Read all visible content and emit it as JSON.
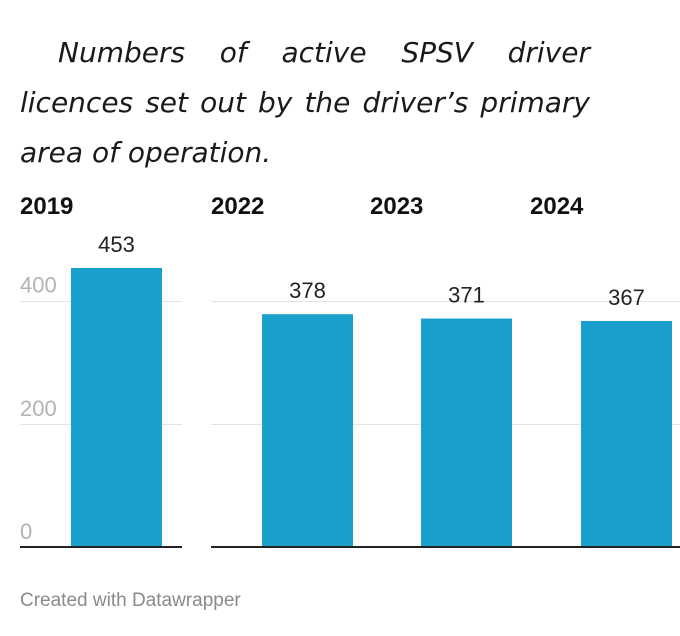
{
  "chart_data": {
    "type": "bar",
    "title": "Numbers of active SPSV driver licences set out by the driver’s primary area of operation.",
    "categories": [
      "2019",
      "2022",
      "2023",
      "2024"
    ],
    "values": [
      453,
      378,
      371,
      367
    ],
    "ylim": [
      0,
      453
    ],
    "yticks": [
      0,
      200,
      400
    ],
    "grid": true,
    "bar_color": "#1aa0cc",
    "xlabel": "",
    "ylabel": ""
  },
  "footer": {
    "credit": "Created with Datawrapper"
  }
}
